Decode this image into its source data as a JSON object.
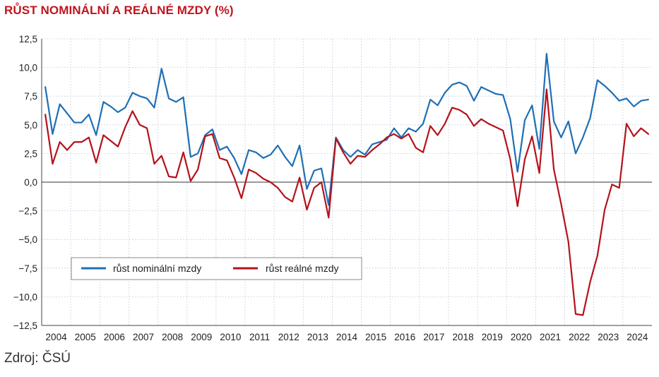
{
  "title": "RŮST NOMINÁLNÍ A REÁLNÉ MZDY (%)",
  "source": "Zdroj: ČSÚ",
  "colors": {
    "nominal": "#1f6fb5",
    "real": "#b5121b",
    "grid": "#b8c4d6",
    "zero": "#333333"
  },
  "chart_data": {
    "type": "line",
    "title": "RŮST NOMINÁLNÍ A REÁLNÉ MZDY (%)",
    "xlabel": "",
    "ylabel": "",
    "ylim": [
      -12.5,
      12.5
    ],
    "y_ticks": [
      12.5,
      10.0,
      7.5,
      5.0,
      2.5,
      0.0,
      -2.5,
      -5.0,
      -7.5,
      -10.0,
      -12.5
    ],
    "y_tick_labels": [
      "12,5",
      "10,0",
      "7,5",
      "5,0",
      "2,5",
      "0,0",
      "−2,5",
      "−5,0",
      "−7,5",
      "−10,0",
      "−12,5"
    ],
    "x_tick_labels": [
      "2004",
      "2005",
      "2006",
      "2007",
      "2008",
      "2009",
      "2010",
      "2011",
      "2012",
      "2013",
      "2014",
      "2015",
      "2016",
      "2017",
      "2018",
      "2019",
      "2020",
      "2021",
      "2022",
      "2023",
      "2024"
    ],
    "grid": "horizontal dotted",
    "legend_position": "lower-left",
    "x": [
      "2004 Q1",
      "2004 Q2",
      "2004 Q3",
      "2004 Q4",
      "2005 Q1",
      "2005 Q2",
      "2005 Q3",
      "2005 Q4",
      "2006 Q1",
      "2006 Q2",
      "2006 Q3",
      "2006 Q4",
      "2007 Q1",
      "2007 Q2",
      "2007 Q3",
      "2007 Q4",
      "2008 Q1",
      "2008 Q2",
      "2008 Q3",
      "2008 Q4",
      "2009 Q1",
      "2009 Q2",
      "2009 Q3",
      "2009 Q4",
      "2010 Q1",
      "2010 Q2",
      "2010 Q3",
      "2010 Q4",
      "2011 Q1",
      "2011 Q2",
      "2011 Q3",
      "2011 Q4",
      "2012 Q1",
      "2012 Q2",
      "2012 Q3",
      "2012 Q4",
      "2013 Q1",
      "2013 Q2",
      "2013 Q3",
      "2013 Q4",
      "2014 Q1",
      "2014 Q2",
      "2014 Q3",
      "2014 Q4",
      "2015 Q1",
      "2015 Q2",
      "2015 Q3",
      "2015 Q4",
      "2016 Q1",
      "2016 Q2",
      "2016 Q3",
      "2016 Q4",
      "2017 Q1",
      "2017 Q2",
      "2017 Q3",
      "2017 Q4",
      "2018 Q1",
      "2018 Q2",
      "2018 Q3",
      "2018 Q4",
      "2019 Q1",
      "2019 Q2",
      "2019 Q3",
      "2019 Q4",
      "2020 Q1",
      "2020 Q2",
      "2020 Q3",
      "2020 Q4",
      "2021 Q1",
      "2021 Q2",
      "2021 Q3",
      "2021 Q4",
      "2022 Q1",
      "2022 Q2",
      "2022 Q3",
      "2022 Q4",
      "2023 Q1",
      "2023 Q2",
      "2023 Q3",
      "2023 Q4",
      "2024 Q1",
      "2024 Q2",
      "2024 Q3",
      "2024 Q4"
    ],
    "series": [
      {
        "name": "růst nominální mzdy",
        "color": "#1f6fb5",
        "values": [
          8.3,
          4.2,
          6.8,
          6.0,
          5.2,
          5.2,
          5.9,
          4.1,
          7.0,
          6.6,
          6.1,
          6.5,
          7.8,
          7.5,
          7.3,
          6.5,
          9.9,
          7.3,
          7.0,
          7.4,
          2.2,
          2.5,
          4.1,
          4.6,
          2.8,
          3.1,
          2.1,
          0.7,
          2.8,
          2.6,
          2.1,
          2.4,
          3.2,
          2.2,
          1.4,
          3.2,
          -0.6,
          1.0,
          1.2,
          -2.0,
          3.9,
          2.8,
          2.2,
          2.8,
          2.4,
          3.3,
          3.5,
          3.7,
          4.7,
          3.9,
          4.7,
          4.4,
          5.1,
          7.2,
          6.7,
          7.8,
          8.5,
          8.7,
          8.4,
          7.1,
          8.3,
          8.0,
          7.7,
          7.6,
          5.5,
          0.9,
          5.4,
          6.7,
          2.9,
          11.2,
          5.3,
          3.9,
          5.3,
          2.5,
          3.9,
          5.6,
          8.9,
          8.4,
          7.8,
          7.1,
          7.3,
          6.6,
          7.1,
          7.2
        ]
      },
      {
        "name": "růst reálné mzdy",
        "color": "#b5121b",
        "values": [
          5.9,
          1.6,
          3.5,
          2.8,
          3.5,
          3.5,
          3.9,
          1.7,
          4.1,
          3.6,
          3.1,
          4.8,
          6.2,
          5.0,
          4.7,
          1.6,
          2.3,
          0.5,
          0.4,
          2.6,
          0.1,
          1.1,
          4.0,
          4.2,
          2.1,
          1.9,
          0.4,
          -1.4,
          1.1,
          0.8,
          0.3,
          0.0,
          -0.5,
          -1.3,
          -1.7,
          0.4,
          -2.4,
          -0.5,
          0.0,
          -3.1,
          3.8,
          2.6,
          1.6,
          2.3,
          2.2,
          2.8,
          3.3,
          3.9,
          4.2,
          3.8,
          4.2,
          3.0,
          2.6,
          4.9,
          4.1,
          5.1,
          6.5,
          6.3,
          5.9,
          4.9,
          5.5,
          5.1,
          4.8,
          4.5,
          2.0,
          -2.1,
          2.0,
          4.0,
          0.8,
          8.1,
          1.1,
          -1.9,
          -5.2,
          -11.5,
          -11.6,
          -8.7,
          -6.4,
          -2.4,
          -0.2,
          -0.5,
          5.1,
          4.0,
          4.7,
          4.2
        ]
      }
    ]
  }
}
